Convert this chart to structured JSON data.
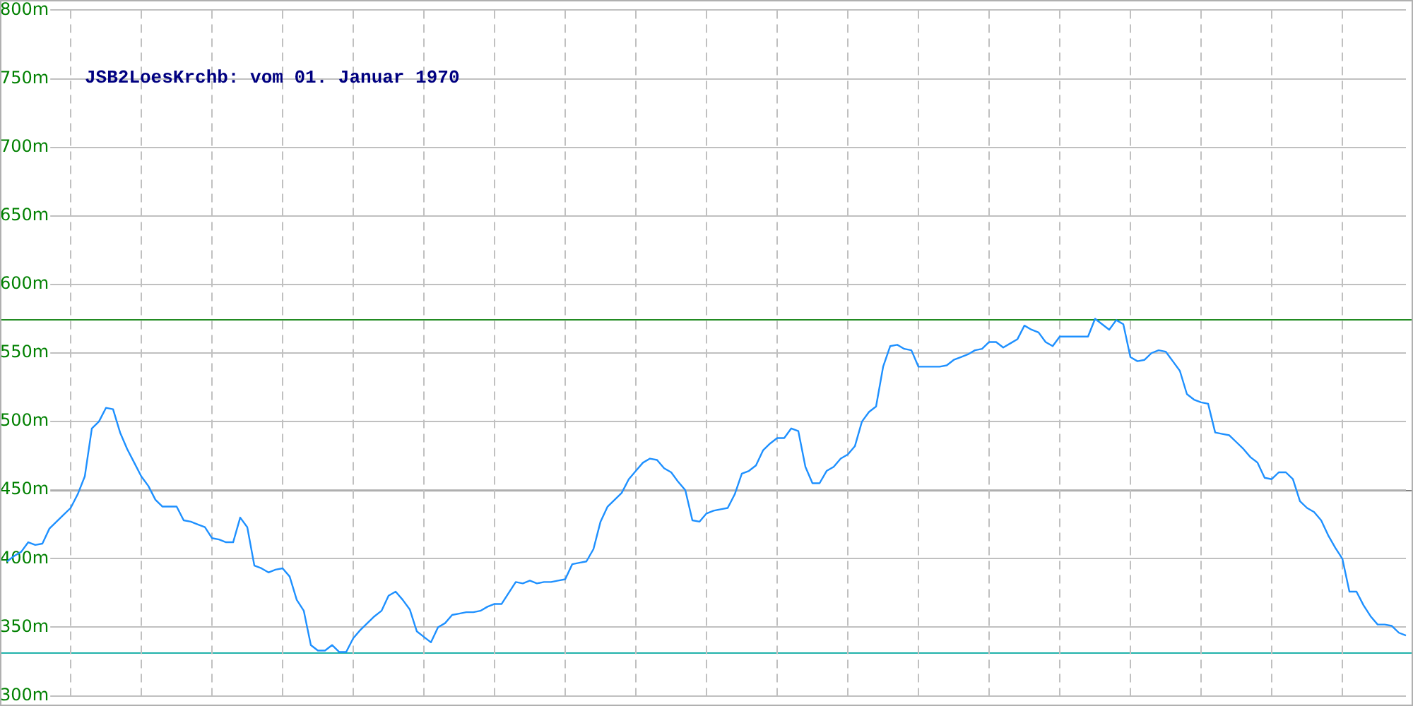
{
  "chart_data": {
    "type": "line",
    "title": "JSB2LoesKrchb: vom 01. Januar 1970",
    "categories": [
      null,
      null,
      null,
      null,
      null,
      null,
      null,
      null,
      null,
      null,
      null,
      null,
      null,
      null,
      null,
      null,
      null,
      null,
      null,
      null,
      null,
      null,
      null,
      null,
      null,
      null,
      null,
      null,
      null,
      null,
      null,
      null,
      null,
      null,
      null,
      null,
      null,
      null,
      null,
      null,
      null,
      null,
      null,
      null,
      null,
      null,
      null,
      null,
      null,
      null,
      null,
      null,
      null,
      null,
      null,
      null,
      null,
      null,
      null,
      null,
      null,
      null,
      null,
      null,
      null,
      null,
      null,
      null,
      null,
      null,
      null,
      null,
      null,
      null,
      null,
      null,
      null,
      null,
      null,
      null,
      null,
      null,
      null,
      null,
      null,
      null,
      null,
      null,
      null,
      null,
      null,
      null,
      null,
      null,
      null,
      null,
      null,
      null,
      null,
      null,
      null,
      null,
      null,
      null,
      null,
      null,
      null,
      null,
      null,
      null,
      null,
      null,
      null,
      null,
      null,
      null,
      null,
      null,
      null,
      null,
      null,
      null,
      null,
      null,
      null,
      null,
      null,
      null,
      null,
      null,
      null,
      null,
      null,
      null,
      null,
      null,
      null,
      null,
      null,
      null,
      null,
      null,
      null,
      null,
      null,
      null,
      null,
      null,
      null,
      null,
      null,
      null,
      null,
      null,
      null,
      null,
      null,
      null,
      null,
      null,
      null,
      null,
      null,
      null,
      null,
      null,
      null,
      null,
      null,
      null,
      null,
      null,
      null,
      null,
      null,
      null,
      null,
      null,
      null,
      null,
      null,
      null,
      null,
      null,
      null,
      null,
      null,
      null,
      null,
      null,
      null,
      null,
      null,
      null,
      null,
      null,
      null,
      null,
      null,
      null
    ],
    "series": [
      {
        "color": "#1e90ff",
        "values": [
          null,
          398,
          402,
          405,
          412,
          410,
          411,
          422,
          427,
          432,
          437,
          447,
          460,
          495,
          500,
          510,
          509,
          492,
          480,
          470,
          460,
          453,
          443,
          438,
          438,
          438,
          428,
          427,
          425,
          423,
          415,
          414,
          412,
          412,
          430,
          423,
          395,
          393,
          390,
          392,
          393,
          387,
          370,
          362,
          337,
          333,
          333,
          337,
          332,
          332,
          342,
          348,
          353,
          358,
          362,
          373,
          376,
          370,
          363,
          347,
          343,
          339,
          350,
          353,
          359,
          360,
          361,
          361,
          362,
          365,
          367,
          367,
          375,
          383,
          382,
          384,
          382,
          383,
          383,
          384,
          385,
          396,
          397,
          398,
          407,
          427,
          438,
          443,
          448,
          458,
          464,
          470,
          473,
          472,
          466,
          463,
          456,
          450,
          428,
          427,
          433,
          435,
          436,
          437,
          447,
          462,
          464,
          468,
          479,
          484,
          488,
          488,
          495,
          493,
          467,
          455,
          455,
          464,
          467,
          473,
          476,
          482,
          500,
          507,
          511,
          540,
          555,
          556,
          553,
          552,
          540,
          540,
          540,
          540,
          541,
          545,
          547,
          549,
          552,
          553,
          558,
          558,
          554,
          557,
          560,
          570,
          567,
          565,
          558,
          555,
          562,
          562,
          562,
          562,
          562,
          575,
          571,
          567,
          574,
          571,
          547,
          544,
          545,
          550,
          552,
          551,
          544,
          537,
          520,
          516,
          514,
          513,
          492,
          491,
          490,
          485,
          480,
          474,
          470,
          459,
          458,
          463,
          463,
          458,
          442,
          437,
          434,
          428,
          417,
          408,
          400,
          376,
          376,
          366,
          358,
          352,
          352,
          351,
          346,
          344
        ]
      }
    ],
    "ylim": [
      300,
      800
    ],
    "yticks": [
      {
        "value": 300,
        "label": "300m"
      },
      {
        "value": 350,
        "label": "350m"
      },
      {
        "value": 400,
        "label": "400m"
      },
      {
        "value": 450,
        "label": "450m"
      },
      {
        "value": 500,
        "label": "500m"
      },
      {
        "value": 550,
        "label": "550m"
      },
      {
        "value": 600,
        "label": "600m"
      },
      {
        "value": 650,
        "label": "650m"
      },
      {
        "value": 700,
        "label": "700m"
      },
      {
        "value": 750,
        "label": "750m"
      },
      {
        "value": 800,
        "label": "800m"
      }
    ],
    "tick_labels": "y",
    "grid": true,
    "legend": false,
    "marker": "none",
    "line_style": "solid",
    "ref_lines": [
      {
        "axis": "y",
        "value": 575,
        "color": "#228b22"
      },
      {
        "axis": "y",
        "value": 450,
        "color": "#808080"
      },
      {
        "axis": "y",
        "value": 332,
        "color": "#20b2aa"
      }
    ]
  }
}
